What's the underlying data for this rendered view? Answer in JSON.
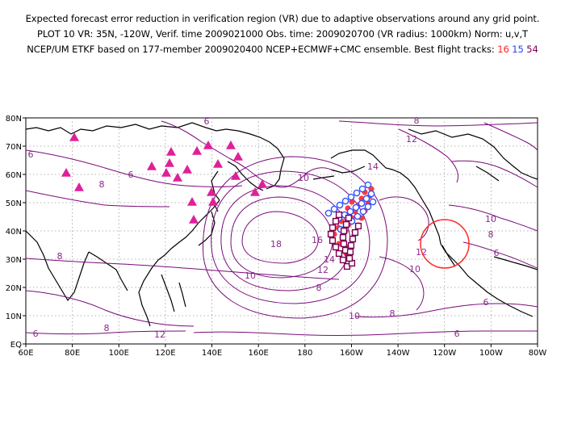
{
  "title": {
    "line1": "Expected forecast error reduction in verification region (VR) due to adaptive observations around any grid point.",
    "line2": "PLOT 10 VR: 35N, -120W, Verif. time 2009021000 Obs. time: 2009020700 (VR radius: 1000km) Norm: u,v,T",
    "line3_prefix": "NCEP/UM ETKF based on 177-member 2009020400 NCEP+ECMWF+CMC ensemble. Best flight tracks:",
    "track_16": "16",
    "track_15": "15",
    "track_54": "54"
  },
  "axes": {
    "y_ticks": [
      "EQ",
      "10N",
      "20N",
      "30N",
      "40N",
      "50N",
      "60N",
      "70N",
      "80N"
    ],
    "x_ticks": [
      "60E",
      "80E",
      "100E",
      "120E",
      "140E",
      "160E",
      "180",
      "160W",
      "140W",
      "120W",
      "100W",
      "80W"
    ]
  },
  "contour_labels": [
    "6",
    "6",
    "6",
    "8",
    "8",
    "8",
    "8",
    "8",
    "8",
    "8",
    "10",
    "10",
    "10",
    "10",
    "10",
    "12",
    "12",
    "12",
    "12",
    "14",
    "14",
    "16",
    "18",
    "6",
    "6",
    "6",
    "6"
  ],
  "markers": {
    "triangles_color": "#e0209a",
    "track16_color": "#ff3a3a",
    "track15_color": "#3050ff",
    "track54_color": "#7a0050",
    "vr_circle_color": "#ff2a2a"
  },
  "verification_region": {
    "lat": 35,
    "lon": -120
  }
}
